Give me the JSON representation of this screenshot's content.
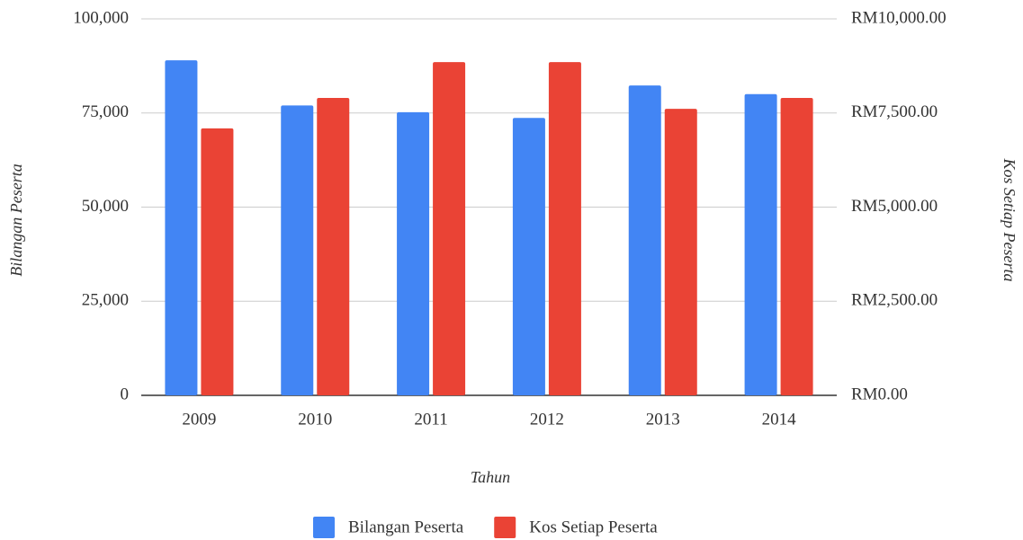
{
  "chart_data": {
    "type": "bar",
    "x_label": "Tahun",
    "y_label": "Bilangan Peserta",
    "y2_label": "Kos Setiap Peserta",
    "categories": [
      "2009",
      "2010",
      "2011",
      "2012",
      "2013",
      "2014"
    ],
    "series": [
      {
        "name": "Bilangan Peserta",
        "color": "#4285f4",
        "values": [
          89000,
          77000,
          75200,
          73700,
          82300,
          80000
        ]
      },
      {
        "name": "Kos Setiap Peserta",
        "color": "#ea4335",
        "axis": "y2",
        "values": [
          7090,
          7900,
          8850,
          8850,
          7610,
          7900
        ]
      }
    ],
    "ylim": [
      0,
      100000
    ],
    "yticks": [
      0,
      {
        "value": 25000,
        "label": "25,000"
      },
      {
        "value": 50000,
        "label": "50,000"
      },
      {
        "value": 75000,
        "label": "75,000"
      },
      {
        "value": 100000,
        "label": "100,000"
      }
    ],
    "y2lim": [
      0,
      10000
    ],
    "y2ticks": [
      {
        "value": 0,
        "label": "RM0.00"
      },
      {
        "value": 2500,
        "label": "RM2,500.00"
      },
      {
        "value": 5000,
        "label": "RM5,000.00"
      },
      {
        "value": 7500,
        "label": "RM7,500.00"
      },
      {
        "value": 10000,
        "label": "RM10,000.00"
      }
    ],
    "grid": true,
    "legend": "bottom"
  }
}
